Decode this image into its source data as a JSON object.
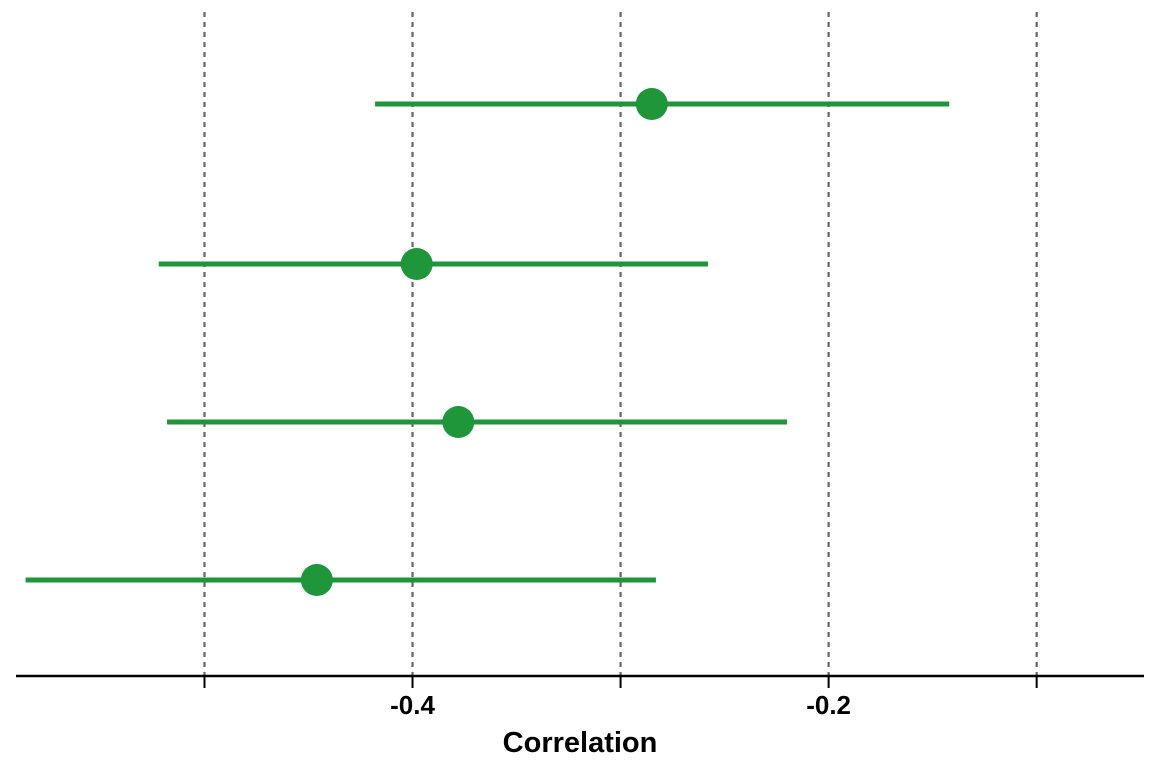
{
  "chart_data": {
    "type": "forest",
    "xlabel": "Correlation",
    "xlim": [
      -0.5906,
      -0.0484
    ],
    "x_ticks": [
      -0.5,
      -0.4,
      -0.3,
      -0.2,
      -0.1
    ],
    "x_tick_labels": [
      "",
      "-0.4",
      "",
      "-0.2",
      ""
    ],
    "grid": "vertical dashed at ticks",
    "points": [
      {
        "estimate": -0.285,
        "lower": -0.418,
        "upper": -0.142
      },
      {
        "estimate": -0.398,
        "lower": -0.522,
        "upper": -0.258
      },
      {
        "estimate": -0.378,
        "lower": -0.518,
        "upper": -0.22
      },
      {
        "estimate": -0.446,
        "lower": -0.586,
        "upper": -0.283
      }
    ],
    "colors": {
      "series": "#1e9639",
      "grid": "#666666",
      "axis": "#000000"
    }
  }
}
